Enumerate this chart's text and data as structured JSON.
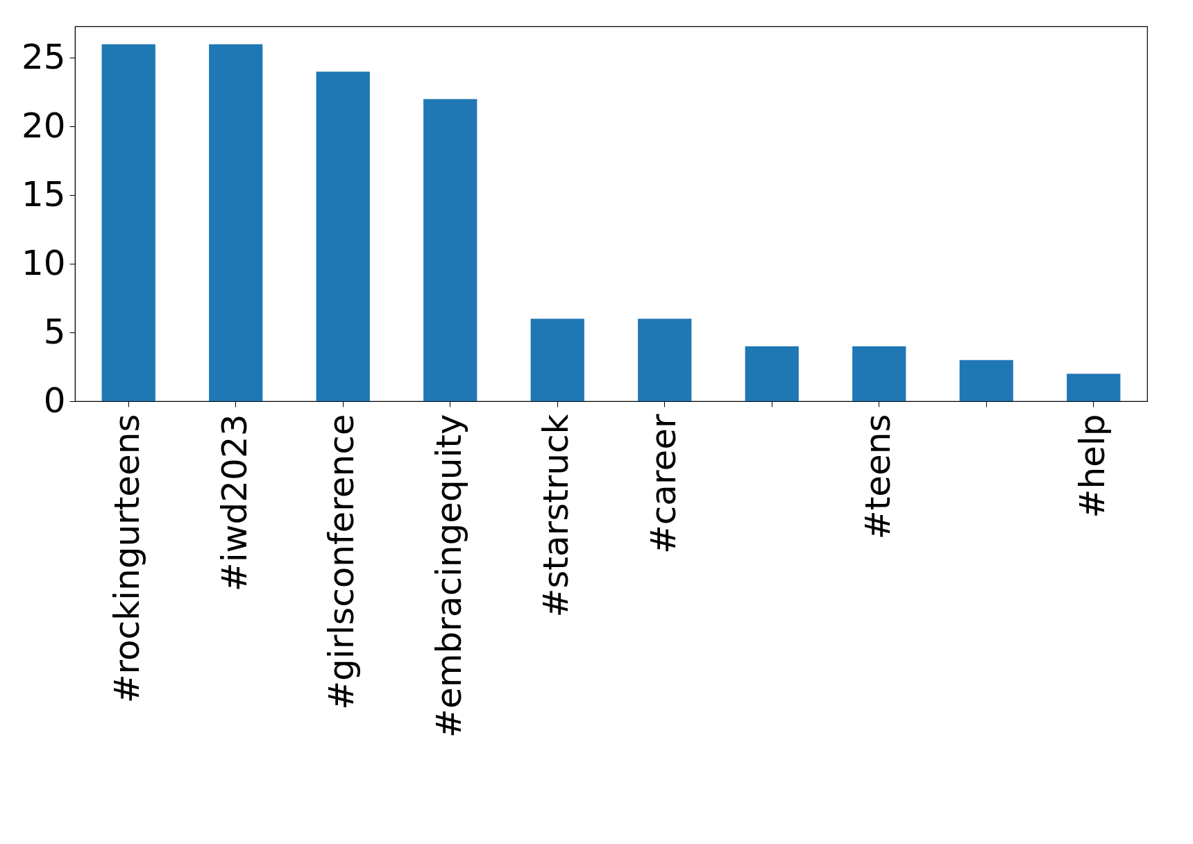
{
  "chart_data": {
    "type": "bar",
    "categories": [
      "#rockingurteens",
      "#iwd2023",
      "#girlsconference",
      "#embracingequity",
      "#starstruck",
      "#career",
      null,
      "#teens",
      null,
      "#help"
    ],
    "values": [
      26,
      26,
      24,
      22,
      6,
      6,
      4,
      4,
      3,
      2
    ],
    "color": "#1f77b4",
    "ylim": [
      0,
      27.3
    ],
    "yticks": [
      0,
      5,
      10,
      15,
      20,
      25
    ],
    "grid": false
  }
}
